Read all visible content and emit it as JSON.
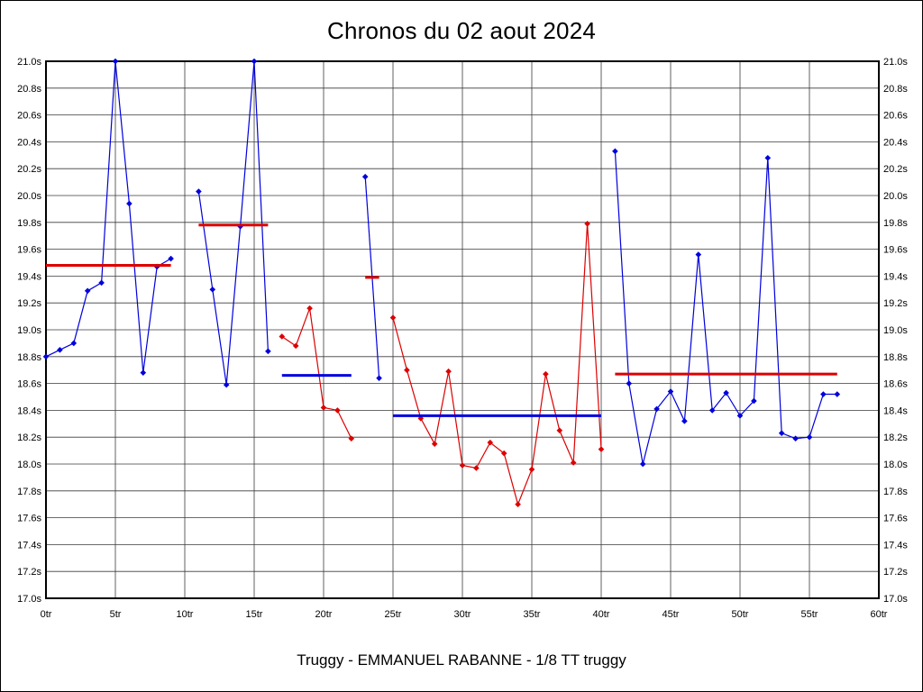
{
  "chart_data": {
    "type": "line",
    "title": "Chronos du 02 aout 2024",
    "subtitle": "Truggy - EMMANUEL RABANNE - 1/8 TT truggy",
    "x_unit": "tr",
    "y_unit": "s",
    "xlim": [
      0,
      60
    ],
    "ylim": [
      17.0,
      21.0
    ],
    "grid": true,
    "legend": "none",
    "marker": "diamond",
    "colors": {
      "blue": "#0000dd",
      "red": "#dd0000",
      "grid": "#3a3a3a",
      "border": "#000000",
      "background": "#ffffff",
      "text": "#000000"
    },
    "x_ticks": [
      {
        "v": 0,
        "label": "0tr"
      },
      {
        "v": 5,
        "label": "5tr"
      },
      {
        "v": 10,
        "label": "10tr"
      },
      {
        "v": 15,
        "label": "15tr"
      },
      {
        "v": 20,
        "label": "20tr"
      },
      {
        "v": 25,
        "label": "25tr"
      },
      {
        "v": 30,
        "label": "30tr"
      },
      {
        "v": 35,
        "label": "35tr"
      },
      {
        "v": 40,
        "label": "40tr"
      },
      {
        "v": 45,
        "label": "45tr"
      },
      {
        "v": 50,
        "label": "50tr"
      },
      {
        "v": 55,
        "label": "55tr"
      },
      {
        "v": 60,
        "label": "60tr"
      }
    ],
    "y_ticks": [
      {
        "v": 17.0,
        "label": "17.0s"
      },
      {
        "v": 17.2,
        "label": "17.2s"
      },
      {
        "v": 17.4,
        "label": "17.4s"
      },
      {
        "v": 17.6,
        "label": "17.6s"
      },
      {
        "v": 17.8,
        "label": "17.8s"
      },
      {
        "v": 18.0,
        "label": "18.0s"
      },
      {
        "v": 18.2,
        "label": "18.2s"
      },
      {
        "v": 18.4,
        "label": "18.4s"
      },
      {
        "v": 18.6,
        "label": "18.6s"
      },
      {
        "v": 18.8,
        "label": "18.8s"
      },
      {
        "v": 19.0,
        "label": "19.0s"
      },
      {
        "v": 19.2,
        "label": "19.2s"
      },
      {
        "v": 19.4,
        "label": "19.4s"
      },
      {
        "v": 19.6,
        "label": "19.6s"
      },
      {
        "v": 19.8,
        "label": "19.8s"
      },
      {
        "v": 20.0,
        "label": "20.0s"
      },
      {
        "v": 20.2,
        "label": "20.2s"
      },
      {
        "v": 20.4,
        "label": "20.4s"
      },
      {
        "v": 20.6,
        "label": "20.6s"
      },
      {
        "v": 20.8,
        "label": "20.8s"
      },
      {
        "v": 21.0,
        "label": "21.0s"
      }
    ],
    "segments": [
      {
        "name": "stint-1",
        "color": "blue",
        "points": [
          [
            0,
            18.8
          ],
          [
            1,
            18.85
          ],
          [
            2,
            18.9
          ],
          [
            3,
            19.29
          ],
          [
            4,
            19.35
          ],
          [
            5,
            21.0
          ],
          [
            6,
            19.94
          ],
          [
            7,
            18.68
          ],
          [
            8,
            19.47
          ],
          [
            9,
            19.53
          ]
        ]
      },
      {
        "name": "stint-2",
        "color": "blue",
        "points": [
          [
            11,
            20.03
          ],
          [
            12,
            19.3
          ],
          [
            13,
            18.59
          ],
          [
            14,
            19.77
          ],
          [
            15,
            21.0
          ],
          [
            16,
            18.84
          ]
        ]
      },
      {
        "name": "stint-3",
        "color": "red",
        "points": [
          [
            17,
            18.95
          ],
          [
            18,
            18.88
          ],
          [
            19,
            19.16
          ],
          [
            20,
            18.42
          ],
          [
            21,
            18.4
          ],
          [
            22,
            18.19
          ]
        ]
      },
      {
        "name": "stint-4",
        "color": "blue",
        "points": [
          [
            23,
            20.14
          ],
          [
            24,
            18.64
          ]
        ]
      },
      {
        "name": "stint-5",
        "color": "red",
        "points": [
          [
            25,
            19.09
          ],
          [
            26,
            18.7
          ],
          [
            27,
            18.34
          ],
          [
            28,
            18.15
          ],
          [
            29,
            18.69
          ],
          [
            30,
            17.99
          ],
          [
            31,
            17.97
          ],
          [
            32,
            18.16
          ],
          [
            33,
            18.08
          ],
          [
            34,
            17.7
          ],
          [
            35,
            17.96
          ],
          [
            36,
            18.67
          ],
          [
            37,
            18.25
          ],
          [
            38,
            18.01
          ],
          [
            39,
            19.79
          ],
          [
            40,
            18.11
          ]
        ]
      },
      {
        "name": "stint-6",
        "color": "blue",
        "points": [
          [
            41,
            20.33
          ],
          [
            42,
            18.6
          ],
          [
            43,
            18.0
          ],
          [
            44,
            18.41
          ],
          [
            45,
            18.54
          ],
          [
            46,
            18.32
          ],
          [
            47,
            19.56
          ],
          [
            48,
            18.4
          ],
          [
            49,
            18.53
          ],
          [
            50,
            18.36
          ],
          [
            51,
            18.47
          ],
          [
            52,
            20.28
          ],
          [
            53,
            18.23
          ],
          [
            54,
            18.19
          ],
          [
            55,
            18.2
          ],
          [
            56,
            18.52
          ],
          [
            57,
            18.52
          ]
        ]
      }
    ],
    "average_lines": [
      {
        "color": "red",
        "from": 0,
        "to": 9,
        "value": 19.48
      },
      {
        "color": "red",
        "from": 11,
        "to": 16,
        "value": 19.78
      },
      {
        "color": "blue",
        "from": 17,
        "to": 22,
        "value": 18.66
      },
      {
        "color": "red",
        "from": 23,
        "to": 24,
        "value": 19.39
      },
      {
        "color": "blue",
        "from": 25,
        "to": 40,
        "value": 18.36
      },
      {
        "color": "red",
        "from": 41,
        "to": 57,
        "value": 18.67
      }
    ]
  }
}
